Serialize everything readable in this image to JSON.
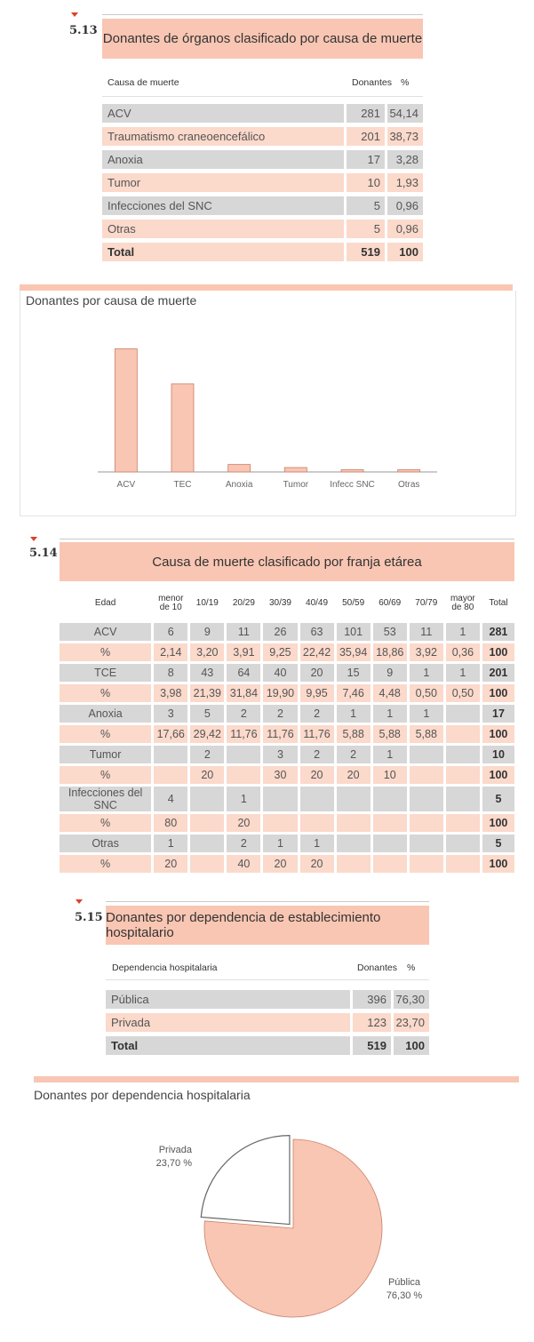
{
  "s513": {
    "number": "5.13",
    "title": "Donantes de órganos clasificado por causa de muerte",
    "headers": {
      "cause": "Causa de muerte",
      "donors": "Donantes",
      "pct": "%"
    },
    "rows": [
      {
        "label": "ACV",
        "donors": "281",
        "pct": "54,14"
      },
      {
        "label": "Traumatismo craneoencefálico",
        "donors": "201",
        "pct": "38,73"
      },
      {
        "label": "Anoxia",
        "donors": "17",
        "pct": "3,28"
      },
      {
        "label": "Tumor",
        "donors": "10",
        "pct": "1,93"
      },
      {
        "label": "Infecciones del SNC",
        "donors": "5",
        "pct": "0,96"
      },
      {
        "label": "Otras",
        "donors": "5",
        "pct": "0,96"
      },
      {
        "label": "Total",
        "donors": "519",
        "pct": "100"
      }
    ]
  },
  "chart1": {
    "title": "Donantes por causa de muerte"
  },
  "s514": {
    "number": "5.14",
    "title": "Causa de muerte clasificado por franja etárea",
    "headers": [
      "Edad",
      "menor de 10",
      "10/19",
      "20/29",
      "30/39",
      "40/49",
      "50/59",
      "60/69",
      "70/79",
      "mayor de 80",
      "Total"
    ],
    "rows": [
      [
        "ACV",
        "6",
        "9",
        "11",
        "26",
        "63",
        "101",
        "53",
        "11",
        "1",
        "281"
      ],
      [
        "%",
        "2,14",
        "3,20",
        "3,91",
        "9,25",
        "22,42",
        "35,94",
        "18,86",
        "3,92",
        "0,36",
        "100"
      ],
      [
        "TCE",
        "8",
        "43",
        "64",
        "40",
        "20",
        "15",
        "9",
        "1",
        "1",
        "201"
      ],
      [
        "%",
        "3,98",
        "21,39",
        "31,84",
        "19,90",
        "9,95",
        "7,46",
        "4,48",
        "0,50",
        "0,50",
        "100"
      ],
      [
        "Anoxia",
        "3",
        "5",
        "2",
        "2",
        "2",
        "1",
        "1",
        "1",
        "",
        "17"
      ],
      [
        "%",
        "17,66",
        "29,42",
        "11,76",
        "11,76",
        "11,76",
        "5,88",
        "5,88",
        "5,88",
        "",
        "100"
      ],
      [
        "Tumor",
        "",
        "2",
        "",
        "3",
        "2",
        "2",
        "1",
        "",
        "",
        "10"
      ],
      [
        "%",
        "",
        "20",
        "",
        "30",
        "20",
        "20",
        "10",
        "",
        "",
        "100"
      ],
      [
        "Infecciones del SNC",
        "4",
        "",
        "1",
        "",
        "",
        "",
        "",
        "",
        "",
        "5"
      ],
      [
        "%",
        "80",
        "",
        "20",
        "",
        "",
        "",
        "",
        "",
        "",
        "100"
      ],
      [
        "Otras",
        "1",
        "",
        "2",
        "1",
        "1",
        "",
        "",
        "",
        "",
        "5"
      ],
      [
        "%",
        "20",
        "",
        "40",
        "20",
        "20",
        "",
        "",
        "",
        "",
        "100"
      ]
    ]
  },
  "s515": {
    "number": "5.15",
    "title": "Donantes por dependencia de establecimiento hospitalario",
    "headers": {
      "dep": "Dependencia hospitalaria",
      "donors": "Donantes",
      "pct": "%"
    },
    "rows": [
      {
        "label": "Pública",
        "donors": "396",
        "pct": "76,30"
      },
      {
        "label": "Privada",
        "donors": "123",
        "pct": "23,70"
      },
      {
        "label": "Total",
        "donors": "519",
        "pct": "100"
      }
    ]
  },
  "chart2": {
    "title": "Donantes por dependencia hospitalaria"
  },
  "colors": {
    "pink": "#f9c6b3",
    "grey": "#d7d7d7",
    "lightpink": "#fbd9cb",
    "red": "#e0402a"
  },
  "chart_data": [
    {
      "type": "bar",
      "categories": [
        "ACV",
        "TEC",
        "Anoxia",
        "Tumor",
        "Infecc SNC",
        "Otras"
      ],
      "values": [
        281,
        201,
        17,
        10,
        5,
        5
      ],
      "title": "Donantes por causa de muerte",
      "ylim": [
        0,
        300
      ],
      "grid": false
    },
    {
      "type": "pie",
      "categories": [
        "Pública",
        "Privada"
      ],
      "values": [
        76.3,
        23.7
      ],
      "value_labels": [
        "76,30 %",
        "23,70 %"
      ],
      "title": "Donantes por dependencia hospitalaria",
      "colors": [
        "#f9c6b3",
        "#ffffff"
      ]
    }
  ]
}
